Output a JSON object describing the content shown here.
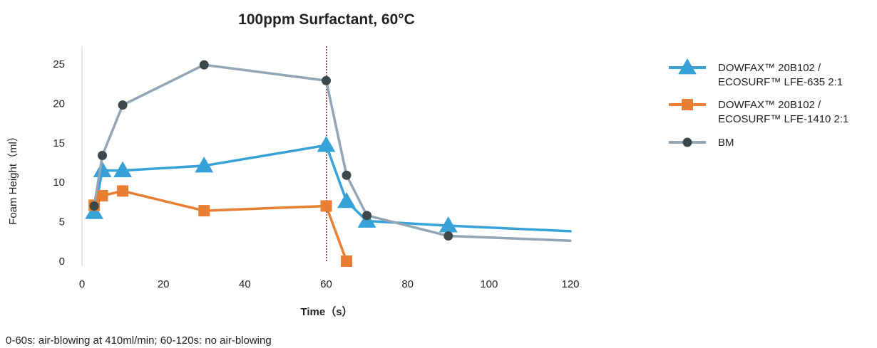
{
  "chart_data": {
    "type": "line",
    "title": "100ppm Surfactant, 60°C",
    "xlabel": "Time（s）",
    "ylabel": "Foam Height（ml）",
    "xlim": [
      0,
      120
    ],
    "ylim": [
      0,
      27
    ],
    "xticks": [
      0,
      20,
      40,
      60,
      80,
      100,
      120
    ],
    "yticks": [
      0,
      5,
      10,
      15,
      20,
      25
    ],
    "grid": false,
    "legend_position": "right",
    "reference_line": {
      "x": 60,
      "style": "dotted",
      "color": "#8b1a1a"
    },
    "series": [
      {
        "name": "DOWFAX™ 20B102 / ECOSURF™ LFE-635 2:1",
        "legend_lines": [
          "DOWFAX™ 20B102 /",
          "ECOSURF™ LFE-635 2:1"
        ],
        "color": "#36a2d8",
        "marker": "triangle",
        "x": [
          3,
          5,
          10,
          30,
          60,
          65,
          70,
          90,
          120
        ],
        "y": [
          6.2,
          11.5,
          11.5,
          12.1,
          14.7,
          7.6,
          5.1,
          4.5,
          3.8
        ],
        "marked": [
          true,
          true,
          true,
          true,
          true,
          true,
          true,
          true,
          false
        ]
      },
      {
        "name": "DOWFAX™ 20B102 / ECOSURF™ LFE-1410 2:1",
        "legend_lines": [
          "DOWFAX™ 20B102 /",
          "ECOSURF™ LFE-1410 2:1"
        ],
        "color": "#e77e32",
        "marker": "square",
        "x": [
          3,
          5,
          10,
          30,
          60,
          65
        ],
        "y": [
          7.1,
          8.3,
          8.9,
          6.4,
          7.0,
          0.0
        ],
        "marked": [
          true,
          true,
          true,
          true,
          true,
          true
        ]
      },
      {
        "name": "BM",
        "legend_lines": [
          "BM"
        ],
        "color": "#93a4b5",
        "marker_color": "#3d4848",
        "marker": "circle",
        "x": [
          3,
          5,
          10,
          30,
          60,
          65,
          70,
          90,
          120
        ],
        "y": [
          7.0,
          13.4,
          19.8,
          24.9,
          22.9,
          10.9,
          5.8,
          3.2,
          2.6
        ],
        "marked": [
          true,
          true,
          true,
          true,
          true,
          true,
          true,
          true,
          false
        ]
      }
    ]
  },
  "footnote": "0-60s: air-blowing at 410ml/min; 60-120s: no air-blowing"
}
